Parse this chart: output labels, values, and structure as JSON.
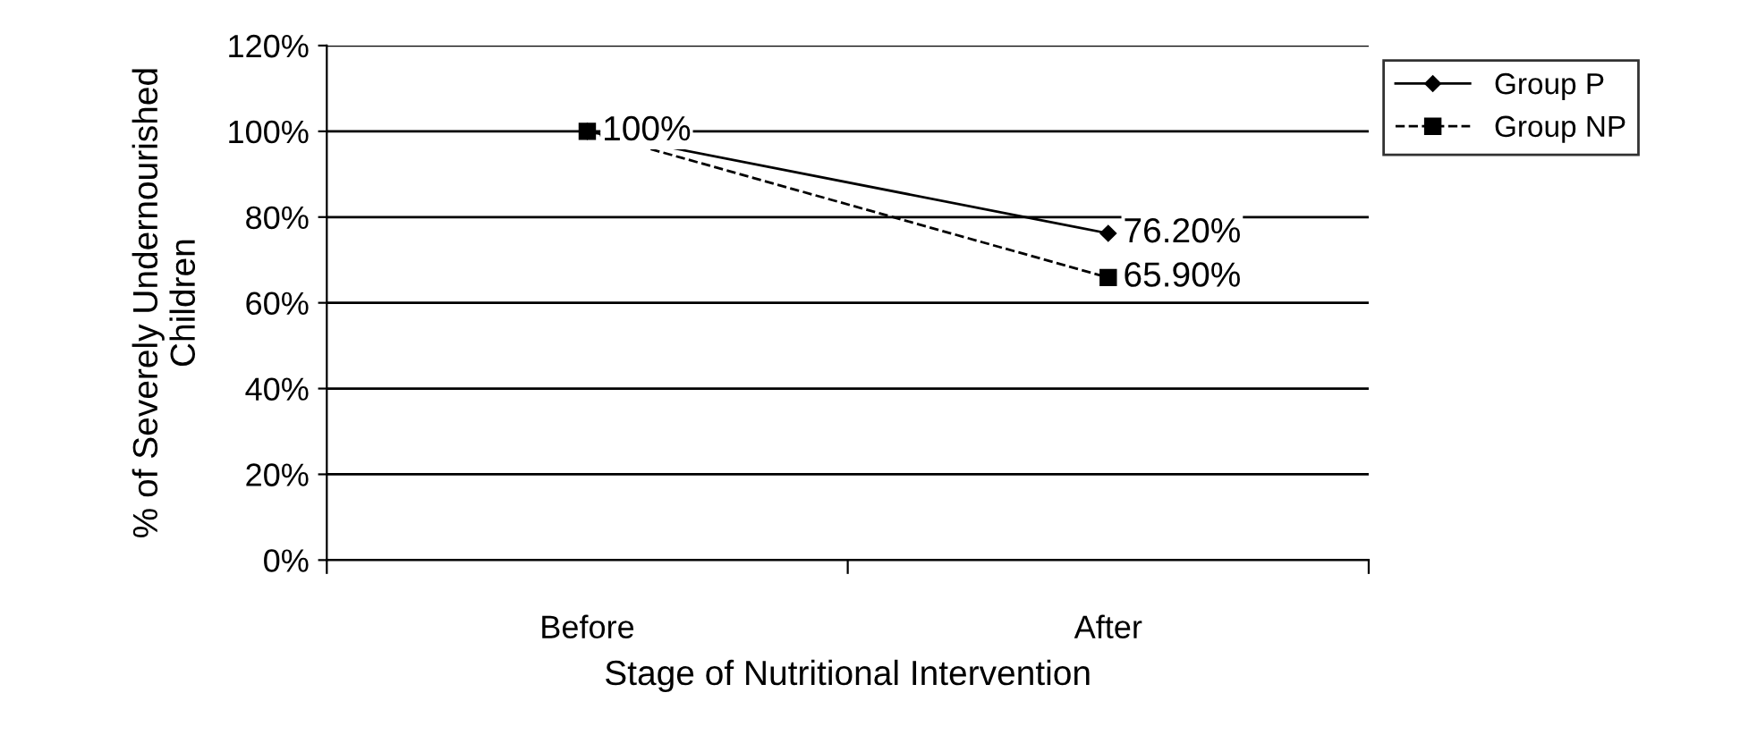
{
  "chart_data": {
    "type": "line",
    "xlabel": "Stage of Nutritional Intervention",
    "ylabel": "% of Severely Undernourished Children",
    "categories": [
      "Before",
      "After"
    ],
    "series": [
      {
        "name": "Group P",
        "color": "#000000",
        "values": [
          100,
          76.2
        ],
        "marker": "diamond",
        "line_style": "solid",
        "value_labels": [
          null,
          "76.20%"
        ]
      },
      {
        "name": "Group NP",
        "color": "#000000",
        "values": [
          100,
          65.9
        ],
        "marker": "square",
        "line_style": "dashed",
        "value_labels": [
          "100%",
          "65.90%"
        ]
      }
    ],
    "ylim": [
      0,
      120
    ],
    "yticks": [
      {
        "value": 0,
        "label": "0%"
      },
      {
        "value": 20,
        "label": "20%"
      },
      {
        "value": 40,
        "label": "40%"
      },
      {
        "value": 60,
        "label": "60%"
      },
      {
        "value": 80,
        "label": "80%"
      },
      {
        "value": 100,
        "label": "100%"
      },
      {
        "value": 120,
        "label": "120%"
      }
    ],
    "grid": "y",
    "legend": "right"
  }
}
